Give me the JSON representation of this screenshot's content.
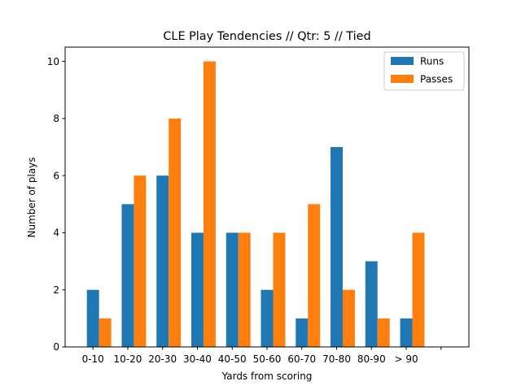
{
  "chart_data": {
    "type": "bar",
    "title": "CLE Play Tendencies // Qtr: 5 // Tied",
    "xlabel": "Yards from scoring",
    "ylabel": "Number of plays",
    "categories": [
      "0-10",
      "10-20",
      "20-30",
      "30-40",
      "40-50",
      "50-60",
      "60-70",
      "70-80",
      "80-90",
      "> 90",
      ""
    ],
    "series": [
      {
        "name": "Runs",
        "color": "#1f77b4",
        "values": [
          2,
          5,
          6,
          4,
          4,
          2,
          1,
          7,
          3,
          1,
          0
        ]
      },
      {
        "name": "Passes",
        "color": "#ff7f0e",
        "values": [
          1,
          6,
          8,
          10,
          4,
          4,
          5,
          2,
          1,
          4,
          0
        ]
      }
    ],
    "ylim": [
      0,
      10.5
    ],
    "yticks": [
      0,
      2,
      4,
      6,
      8,
      10
    ],
    "grid": false,
    "legend_position": "top-right"
  }
}
